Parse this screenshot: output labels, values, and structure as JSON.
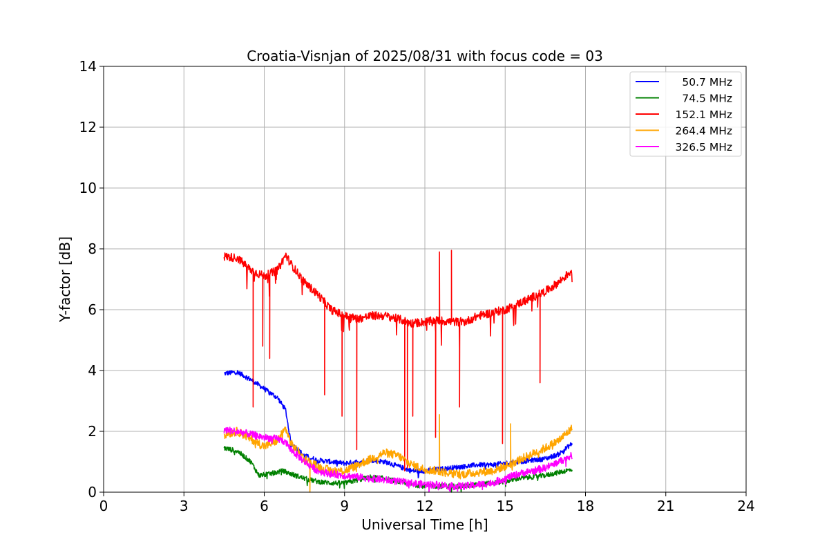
{
  "chart_data": {
    "type": "line",
    "title": "Croatia-Visnjan of 2025/08/31 with focus code = 03",
    "xlabel": "Universal Time [h]",
    "ylabel": "Y-factor [dB]",
    "xlim": [
      0,
      24
    ],
    "ylim": [
      0,
      14
    ],
    "xticks": [
      0,
      3,
      6,
      9,
      12,
      15,
      18,
      21,
      24
    ],
    "yticks": [
      0,
      2,
      4,
      6,
      8,
      10,
      12,
      14
    ],
    "xtick_labels": [
      "0",
      "3",
      "6",
      "9",
      "12",
      "15",
      "18",
      "21",
      "24"
    ],
    "ytick_labels": [
      "0",
      "2",
      "4",
      "6",
      "8",
      "10",
      "12",
      "14"
    ],
    "grid": true,
    "legend_position": "top-right",
    "series": [
      {
        "name": "50.7 MHz",
        "color": "#0000ff",
        "x": [
          4.5,
          5.0,
          5.5,
          6.0,
          6.5,
          6.8,
          7.0,
          7.5,
          8.0,
          8.5,
          9.0,
          9.5,
          10.0,
          10.5,
          11.0,
          11.5,
          12.0,
          12.5,
          13.0,
          13.5,
          14.0,
          14.5,
          15.0,
          15.5,
          16.0,
          16.5,
          17.0,
          17.5
        ],
        "values": [
          3.9,
          3.95,
          3.7,
          3.4,
          3.1,
          2.7,
          1.6,
          1.2,
          1.05,
          1.0,
          0.95,
          1.0,
          1.05,
          1.0,
          0.85,
          0.7,
          0.7,
          0.75,
          0.8,
          0.85,
          0.9,
          0.9,
          0.95,
          1.0,
          1.05,
          1.1,
          1.25,
          1.6
        ]
      },
      {
        "name": "74.5 MHz",
        "color": "#008000",
        "x": [
          4.5,
          5.0,
          5.5,
          5.8,
          6.2,
          6.7,
          7.0,
          7.5,
          8.0,
          8.5,
          9.0,
          9.5,
          10.0,
          10.5,
          11.0,
          11.5,
          12.0,
          12.5,
          13.0,
          13.5,
          14.0,
          14.5,
          15.0,
          15.5,
          16.0,
          16.5,
          17.0,
          17.5
        ],
        "values": [
          1.45,
          1.35,
          1.0,
          0.55,
          0.6,
          0.7,
          0.6,
          0.45,
          0.35,
          0.3,
          0.3,
          0.4,
          0.5,
          0.45,
          0.35,
          0.25,
          0.2,
          0.2,
          0.2,
          0.2,
          0.25,
          0.3,
          0.35,
          0.45,
          0.5,
          0.55,
          0.65,
          0.75
        ]
      },
      {
        "name": "152.1 MHz",
        "color": "#ff0000",
        "x": [
          4.5,
          5.0,
          5.5,
          6.0,
          6.5,
          6.8,
          7.0,
          7.5,
          8.0,
          8.5,
          9.0,
          9.5,
          10.0,
          10.5,
          11.0,
          11.5,
          12.0,
          12.5,
          13.0,
          13.5,
          14.0,
          14.5,
          15.0,
          15.5,
          16.0,
          16.5,
          17.0,
          17.5
        ],
        "values": [
          7.75,
          7.7,
          7.3,
          7.1,
          7.3,
          7.8,
          7.5,
          6.9,
          6.5,
          6.0,
          5.8,
          5.7,
          5.8,
          5.8,
          5.7,
          5.55,
          5.6,
          5.65,
          5.6,
          5.6,
          5.8,
          5.9,
          6.0,
          6.2,
          6.4,
          6.6,
          6.9,
          7.3
        ]
      },
      {
        "name": "264.4 MHz",
        "color": "#ffa500",
        "x": [
          4.5,
          5.0,
          5.5,
          6.0,
          6.5,
          6.8,
          7.0,
          7.5,
          8.0,
          8.5,
          9.0,
          9.5,
          10.0,
          10.5,
          11.0,
          11.5,
          12.0,
          12.5,
          13.0,
          13.5,
          14.0,
          14.5,
          15.0,
          15.5,
          16.0,
          16.5,
          17.0,
          17.5
        ],
        "values": [
          1.9,
          2.0,
          1.75,
          1.5,
          1.7,
          2.1,
          1.6,
          1.1,
          0.85,
          0.7,
          0.7,
          0.9,
          1.1,
          1.3,
          1.2,
          0.9,
          0.75,
          0.7,
          0.6,
          0.6,
          0.65,
          0.7,
          0.85,
          1.05,
          1.25,
          1.45,
          1.7,
          2.1
        ]
      },
      {
        "name": "326.5 MHz",
        "color": "#ff00ff",
        "x": [
          4.5,
          5.0,
          5.5,
          6.0,
          6.5,
          6.8,
          7.0,
          7.5,
          8.0,
          8.5,
          9.0,
          9.5,
          10.0,
          10.5,
          11.0,
          11.5,
          12.0,
          12.5,
          13.0,
          13.5,
          14.0,
          14.5,
          15.0,
          15.5,
          16.0,
          16.5,
          17.0,
          17.5
        ],
        "values": [
          2.05,
          2.0,
          1.9,
          1.8,
          1.75,
          1.65,
          1.4,
          1.0,
          0.7,
          0.6,
          0.55,
          0.5,
          0.45,
          0.4,
          0.35,
          0.3,
          0.25,
          0.25,
          0.2,
          0.2,
          0.25,
          0.3,
          0.45,
          0.6,
          0.7,
          0.8,
          1.0,
          1.2
        ]
      }
    ],
    "spikes": [
      {
        "series": 2,
        "x": 5.58,
        "y": 2.8
      },
      {
        "series": 2,
        "x": 5.95,
        "y": 4.8
      },
      {
        "series": 2,
        "x": 6.2,
        "y": 4.4
      },
      {
        "series": 2,
        "x": 8.25,
        "y": 3.2
      },
      {
        "series": 2,
        "x": 8.9,
        "y": 2.5
      },
      {
        "series": 2,
        "x": 9.45,
        "y": 1.4
      },
      {
        "series": 2,
        "x": 11.25,
        "y": 0.7
      },
      {
        "series": 2,
        "x": 11.35,
        "y": 0.8
      },
      {
        "series": 2,
        "x": 11.55,
        "y": 2.5
      },
      {
        "series": 2,
        "x": 12.4,
        "y": 1.8
      },
      {
        "series": 2,
        "x": 12.55,
        "y": 7.9
      },
      {
        "series": 2,
        "x": 13.0,
        "y": 7.95
      },
      {
        "series": 2,
        "x": 13.3,
        "y": 2.8
      },
      {
        "series": 2,
        "x": 14.9,
        "y": 1.6
      },
      {
        "series": 2,
        "x": 16.3,
        "y": 3.6
      },
      {
        "series": 3,
        "x": 12.55,
        "y": 2.55
      },
      {
        "series": 3,
        "x": 15.2,
        "y": 2.25
      },
      {
        "series": 3,
        "x": 7.7,
        "y": 0.0
      }
    ]
  }
}
